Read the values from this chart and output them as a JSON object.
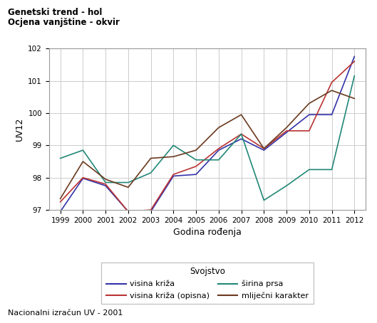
{
  "title_line1": "Genetski trend - hol",
  "title_line2": "Ocjena vanjštine - okvir",
  "xlabel": "Godina rođenja",
  "ylabel": "UV12",
  "footnote": "Nacionalni izračun UV - 2001",
  "legend_title": "Svojstvo",
  "years": [
    1999,
    2000,
    2001,
    2002,
    2003,
    2004,
    2005,
    2006,
    2007,
    2008,
    2009,
    2010,
    2011,
    2012
  ],
  "visina_kriza": [
    96.95,
    97.98,
    97.75,
    96.95,
    96.95,
    98.05,
    98.1,
    98.85,
    99.2,
    98.85,
    99.4,
    99.95,
    99.95,
    101.75
  ],
  "visina_kriza_opisna": [
    97.25,
    98.0,
    97.8,
    96.95,
    97.0,
    98.1,
    98.35,
    98.9,
    99.35,
    98.9,
    99.45,
    99.45,
    100.95,
    101.6
  ],
  "sirina_prsa": [
    98.6,
    98.85,
    97.85,
    97.85,
    98.15,
    99.0,
    98.55,
    98.55,
    99.35,
    97.3,
    97.75,
    98.25,
    98.25,
    101.15
  ],
  "mljecni_karakter": [
    97.35,
    98.5,
    97.95,
    97.7,
    98.6,
    98.65,
    98.85,
    99.55,
    99.95,
    98.9,
    99.55,
    100.3,
    100.7,
    100.45
  ],
  "ylim": [
    97.0,
    102.0
  ],
  "yticks": [
    97,
    98,
    99,
    100,
    101,
    102
  ],
  "color_visina_kriza": "#3333aa",
  "color_visina_kriza_opisna": "#bb3333",
  "color_sirina_prsa": "#228877",
  "color_mljecni_karakter": "#6b3a1f",
  "bg_color": "#ffffff",
  "plot_bg_color": "#ffffff",
  "grid_color": "#cccccc"
}
